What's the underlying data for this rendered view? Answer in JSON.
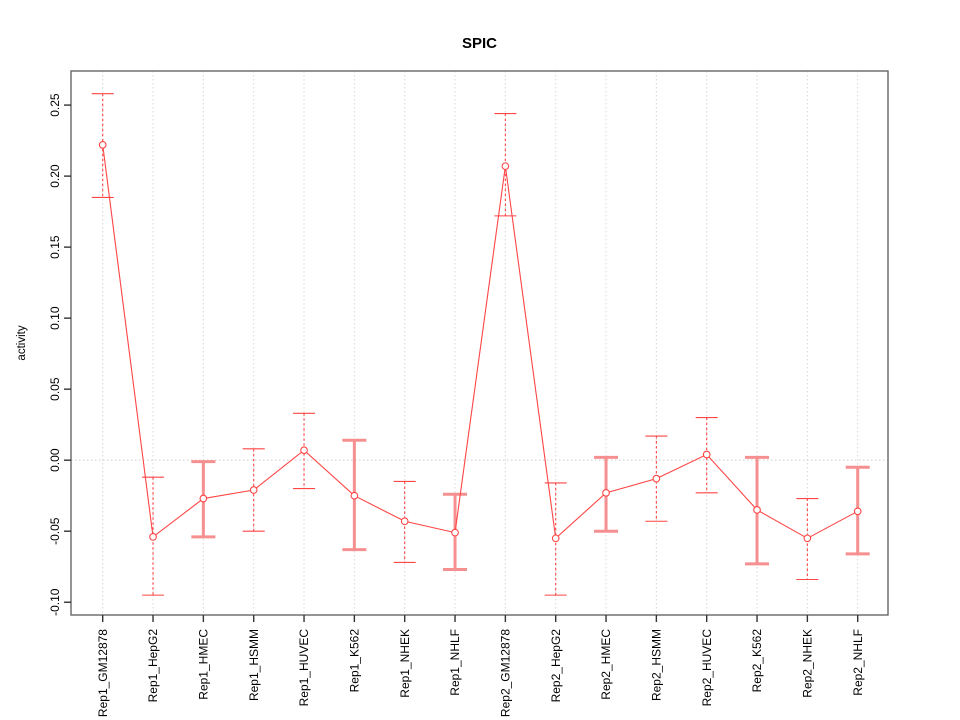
{
  "window": {
    "background": "#ffffff"
  },
  "chart_data": {
    "type": "line",
    "title": "SPIC",
    "xlabel": "",
    "ylabel": "activity",
    "legend": "none",
    "grid": {
      "vertical_dotted_per_category": true,
      "horizontal_zero_line_dotted": true
    },
    "marker": "open-circle",
    "categories": [
      "Rep1_GM12878",
      "Rep1_HepG2",
      "Rep1_HMEC",
      "Rep1_HSMM",
      "Rep1_HUVEC",
      "Rep1_K562",
      "Rep1_NHEK",
      "Rep1_NHLF",
      "Rep2_GM12878",
      "Rep2_HepG2",
      "Rep2_HMEC",
      "Rep2_HSMM",
      "Rep2_HUVEC",
      "Rep2_K562",
      "Rep2_NHEK",
      "Rep2_NHLF"
    ],
    "series": [
      {
        "name": "activity",
        "values": [
          0.222,
          -0.054,
          -0.027,
          -0.021,
          0.007,
          -0.025,
          -0.043,
          -0.051,
          0.207,
          -0.055,
          -0.023,
          -0.013,
          0.004,
          -0.035,
          -0.055,
          -0.036
        ],
        "ci_low": [
          0.185,
          -0.095,
          -0.054,
          -0.05,
          -0.02,
          -0.063,
          -0.072,
          -0.077,
          0.172,
          -0.095,
          -0.05,
          -0.043,
          -0.023,
          -0.073,
          -0.084,
          -0.066
        ],
        "ci_high": [
          0.258,
          -0.012,
          -0.001,
          0.008,
          0.033,
          0.014,
          -0.015,
          -0.024,
          0.244,
          -0.016,
          0.002,
          0.017,
          0.03,
          0.002,
          -0.027,
          -0.005
        ],
        "heavy_bar": [
          false,
          false,
          true,
          false,
          false,
          true,
          false,
          true,
          false,
          false,
          true,
          false,
          false,
          true,
          false,
          true
        ]
      }
    ],
    "ylim": [
      -0.109,
      0.274
    ],
    "ytick_values": [
      -0.1,
      -0.05,
      0.0,
      0.05,
      0.1,
      0.15,
      0.2,
      0.25
    ],
    "ytick_labels": [
      "-0.10",
      "-0.05",
      "0.00",
      "0.05",
      "0.10",
      "0.15",
      "0.20",
      "0.25"
    ],
    "colors": {
      "line": "#ff4545",
      "marker_stroke": "#ff4545",
      "marker_fill": "#ffffff",
      "error_bar_thin": "#ff4545",
      "error_bar_heavy": "#f69090",
      "gridline": "#d8d8d8",
      "zero_line": "#c9c9c9",
      "plot_border": "#666666",
      "tick": "#333333",
      "text": "#000000"
    }
  }
}
